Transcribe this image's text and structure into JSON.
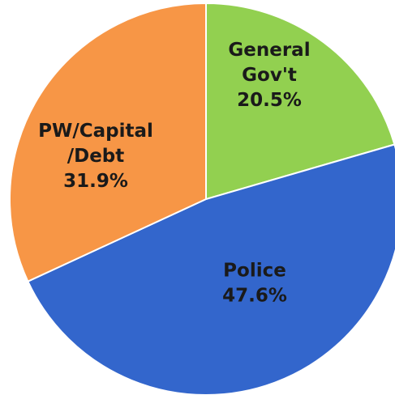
{
  "chart_data": {
    "type": "pie",
    "title": "",
    "legend": "none",
    "slices": [
      {
        "name": "General Gov't",
        "label_lines": [
          "General",
          "Gov't"
        ],
        "value": 20.5,
        "value_label": "20.5%",
        "color": "#92d050"
      },
      {
        "name": "Police",
        "label_lines": [
          "Police"
        ],
        "value": 47.6,
        "value_label": "47.6%",
        "color": "#3366cc"
      },
      {
        "name": "PW/Capital/Debt",
        "label_lines": [
          "PW/Capital",
          "/Debt"
        ],
        "value": 31.9,
        "value_label": "31.9%",
        "color": "#f79646"
      }
    ]
  }
}
